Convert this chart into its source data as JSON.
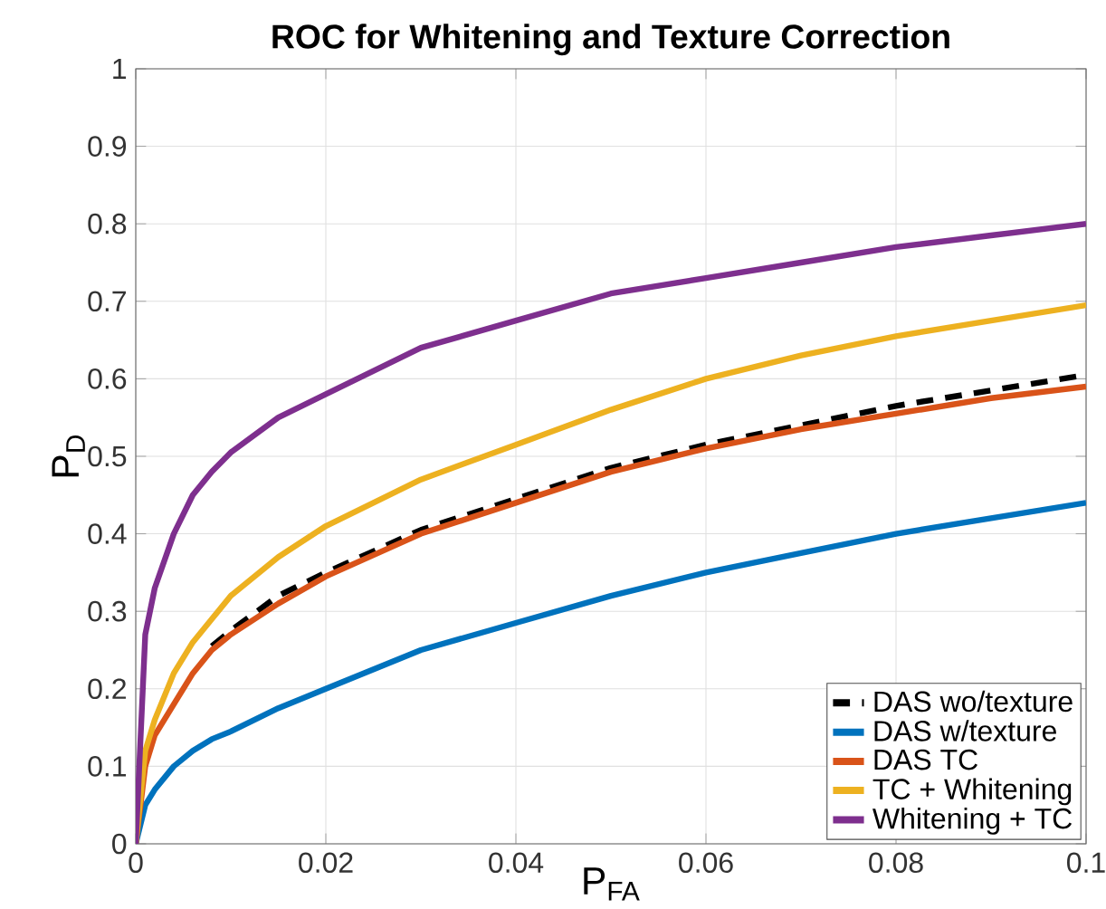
{
  "chart_data": {
    "type": "line",
    "title": "ROC for Whitening and Texture Correction",
    "xlabel": "P$_{FA}$",
    "ylabel": "P$_{D}$",
    "x": [
      0,
      0.001,
      0.002,
      0.004,
      0.006,
      0.008,
      0.01,
      0.015,
      0.02,
      0.03,
      0.04,
      0.05,
      0.06,
      0.07,
      0.08,
      0.09,
      0.1
    ],
    "series": [
      {
        "name": "DAS wo/texture",
        "color": "#000000",
        "line_style": "dashed",
        "values": [
          null,
          null,
          null,
          null,
          null,
          0.255,
          0.275,
          0.32,
          0.35,
          0.405,
          0.445,
          0.485,
          0.515,
          0.54,
          0.565,
          0.585,
          0.605
        ]
      },
      {
        "name": "DAS w/texture",
        "color": "#0072bd",
        "values": [
          0,
          0.05,
          0.07,
          0.1,
          0.12,
          0.135,
          0.145,
          0.175,
          0.2,
          0.25,
          0.285,
          0.32,
          0.35,
          0.375,
          0.4,
          0.42,
          0.44
        ]
      },
      {
        "name": "DAS TC",
        "color": "#d95319",
        "values": [
          0,
          0.1,
          0.14,
          0.18,
          0.22,
          0.25,
          0.27,
          0.31,
          0.345,
          0.4,
          0.44,
          0.48,
          0.51,
          0.535,
          0.555,
          0.575,
          0.59
        ]
      },
      {
        "name": "TC + Whitening",
        "color": "#edb120",
        "values": [
          0,
          0.12,
          0.16,
          0.22,
          0.26,
          0.29,
          0.32,
          0.37,
          0.41,
          0.47,
          0.515,
          0.56,
          0.6,
          0.63,
          0.655,
          0.675,
          0.695
        ]
      },
      {
        "name": "Whitening + TC",
        "color": "#7e2f8e",
        "values": [
          0,
          0.27,
          0.33,
          0.4,
          0.45,
          0.48,
          0.505,
          0.55,
          0.58,
          0.64,
          0.675,
          0.71,
          0.73,
          0.75,
          0.77,
          0.785,
          0.8
        ]
      }
    ],
    "xlim": [
      0,
      0.1
    ],
    "ylim": [
      0,
      1
    ],
    "xticks": [
      0,
      0.02,
      0.04,
      0.06,
      0.08,
      0.1
    ],
    "yticks": [
      0,
      0.1,
      0.2,
      0.3,
      0.4,
      0.5,
      0.6,
      0.7,
      0.8,
      0.9,
      1
    ],
    "grid": true,
    "legend": "bottom right"
  }
}
